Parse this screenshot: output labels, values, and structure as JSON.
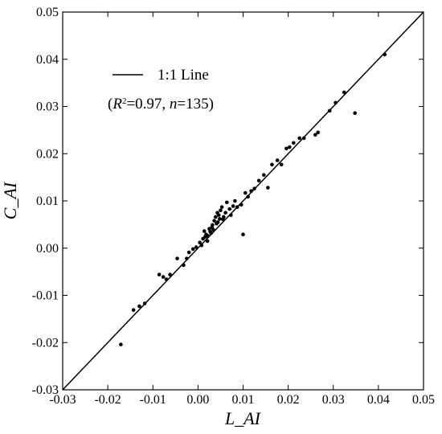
{
  "chart_data": {
    "type": "scatter",
    "xlabel": "L_AI",
    "ylabel": "C_AI",
    "xlim": [
      -0.03,
      0.05
    ],
    "ylim": [
      -0.03,
      0.05
    ],
    "xticks": [
      -0.03,
      -0.02,
      -0.01,
      {
        "value": 0,
        "label": "0.00"
      },
      0.01,
      0.02,
      0.03,
      0.04,
      0.05
    ],
    "yticks": [
      -0.03,
      -0.02,
      -0.01,
      {
        "value": 0,
        "label": "0.00"
      },
      0.01,
      0.02,
      0.03,
      0.04,
      0.05
    ],
    "annotation": [
      "(",
      "R",
      "2",
      "=0.97, ",
      "n",
      "=135)"
    ],
    "series": [
      {
        "name": "1:1 Line",
        "type": "line",
        "color": "#000000",
        "x": [
          -0.03,
          0.05
        ],
        "y": [
          -0.03,
          0.05
        ]
      },
      {
        "type": "scatter",
        "color": "#000000",
        "x": [
          -0.0171,
          -0.0143,
          -0.013,
          -0.0118,
          -0.0086,
          -0.0077,
          -0.007,
          -0.0062,
          -0.0046,
          -0.0032,
          -0.0025,
          -0.002,
          -0.0011,
          -0.0004,
          0.0004,
          0.0011,
          0.0018,
          0.0021,
          0.0014,
          0.0025,
          0.0029,
          0.0032,
          0.0036,
          0.0039,
          0.0043,
          0.0046,
          0.005,
          0.0053,
          0.0057,
          0.0061,
          0.0064,
          0.007,
          0.0073,
          0.0078,
          0.0082,
          0.0087,
          0.0096,
          0.01,
          0.0105,
          0.0111,
          0.0118,
          0.0125,
          0.0135,
          0.0146,
          0.0155,
          0.0164,
          0.0176,
          0.0185,
          0.0196,
          0.0203,
          0.0212,
          0.0225,
          0.0235,
          0.026,
          0.0266,
          0.0292,
          0.0305,
          0.0324,
          0.0348,
          0.0414,
          0.0022,
          0.0027,
          0.0031,
          0.0034,
          0.0041,
          0.0048,
          0.0055,
          0.0008,
          0.0016,
          0.0044
        ],
        "y": [
          -0.0204,
          -0.0131,
          -0.0123,
          -0.0117,
          -0.0056,
          -0.0061,
          -0.0066,
          -0.0056,
          -0.0022,
          -0.0036,
          -0.0022,
          -0.0009,
          -0.0002,
          0.0002,
          0.0012,
          0.002,
          0.0029,
          0.0015,
          0.0036,
          0.0041,
          0.0032,
          0.0049,
          0.0058,
          0.0066,
          0.0075,
          0.007,
          0.008,
          0.0087,
          0.0066,
          0.0075,
          0.0097,
          0.0083,
          0.007,
          0.0089,
          0.01,
          0.0087,
          0.0092,
          0.0029,
          0.0117,
          0.0109,
          0.0121,
          0.0126,
          0.0143,
          0.0155,
          0.0128,
          0.0177,
          0.0186,
          0.0177,
          0.0211,
          0.0214,
          0.0223,
          0.0233,
          0.0233,
          0.024,
          0.0245,
          0.0291,
          0.0308,
          0.033,
          0.0286,
          0.041,
          0.0026,
          0.0035,
          0.0044,
          0.0039,
          0.0052,
          0.0062,
          0.0061,
          0.0006,
          0.0024,
          0.0055
        ]
      }
    ]
  }
}
